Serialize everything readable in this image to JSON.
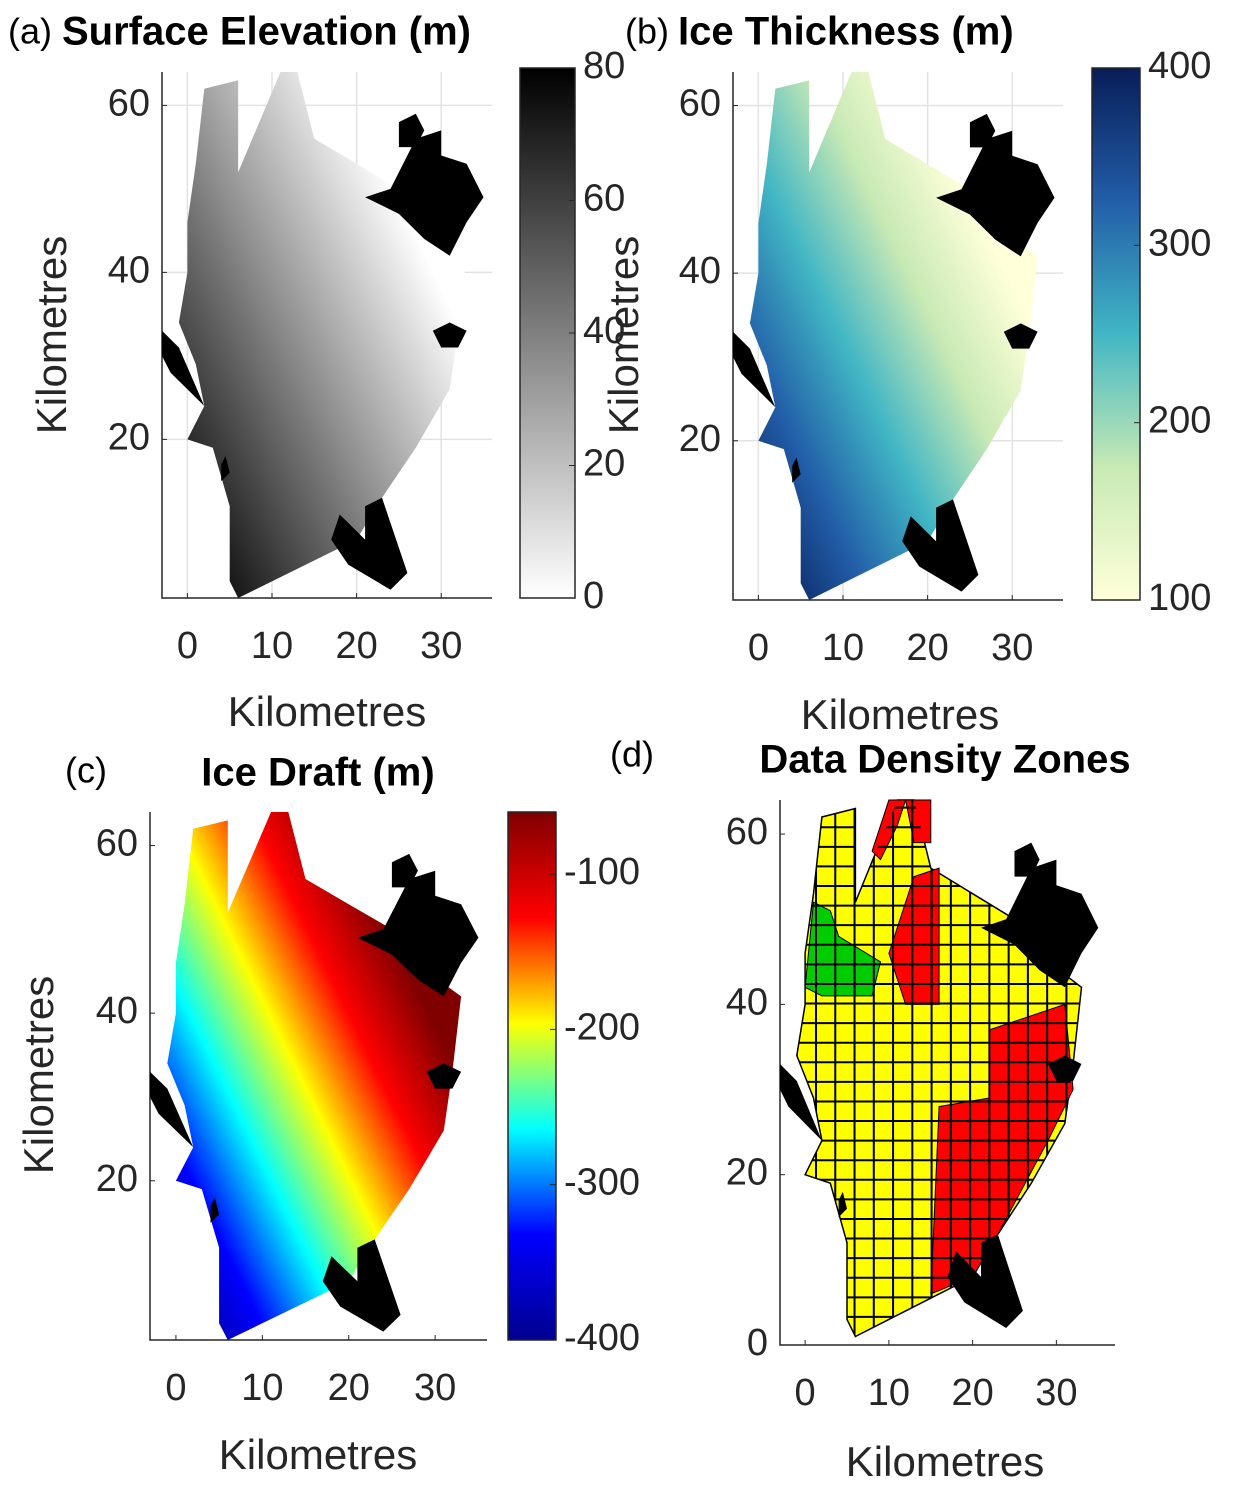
{
  "chart_data": [
    {
      "type": "map",
      "panel_label": "(a)",
      "title": "Surface Elevation (m)",
      "xlabel": "Kilometres",
      "ylabel": "Kilometres",
      "xlim": [
        -3,
        36
      ],
      "ylim": [
        1,
        64
      ],
      "xticks": [
        0,
        10,
        20,
        30
      ],
      "yticks": [
        20,
        40,
        60
      ],
      "grid": true,
      "colorbar": {
        "lim": [
          0,
          80
        ],
        "ticks": [
          0,
          20,
          40,
          60,
          80
        ],
        "colormap": [
          "#ffffff",
          "#000000"
        ]
      }
    },
    {
      "type": "map",
      "panel_label": "(b)",
      "title": "Ice Thickness (m)",
      "xlabel": "Kilometres",
      "ylabel": "Kilometres",
      "xlim": [
        -3,
        36
      ],
      "ylim": [
        1,
        64
      ],
      "xticks": [
        0,
        10,
        20,
        30
      ],
      "yticks": [
        20,
        40,
        60
      ],
      "grid": true,
      "colorbar": {
        "lim": [
          100,
          400
        ],
        "ticks": [
          100,
          200,
          300,
          400
        ],
        "colormap": [
          "#ffffd9",
          "#c7e9b4",
          "#41b6c4",
          "#225ea8",
          "#081d58"
        ]
      }
    },
    {
      "type": "map",
      "panel_label": "(c)",
      "title": "Ice Draft (m)",
      "xlabel": "Kilometres",
      "ylabel": "Kilometres",
      "xlim": [
        -3,
        36
      ],
      "ylim": [
        1,
        64
      ],
      "xticks": [
        0,
        10,
        20,
        30
      ],
      "yticks": [
        20,
        40,
        60
      ],
      "grid": false,
      "colorbar": {
        "lim": [
          -400,
          -60
        ],
        "ticks": [
          -100,
          -200,
          -300,
          -400
        ],
        "colormap": [
          "#00008f",
          "#0000ff",
          "#00ffff",
          "#ffff00",
          "#ff0000",
          "#800000"
        ]
      }
    },
    {
      "type": "zones",
      "panel_label": "(d)",
      "title": "Data Density Zones",
      "xlabel": "Kilometres",
      "xlim": [
        -3,
        37
      ],
      "ylim": [
        0,
        64
      ],
      "xticks": [
        0,
        10,
        20,
        30
      ],
      "yticks": [
        0,
        20,
        40,
        60
      ],
      "grid": false,
      "zone_colors": [
        "#ffff00",
        "#ff0000",
        "#00cc00"
      ]
    }
  ]
}
